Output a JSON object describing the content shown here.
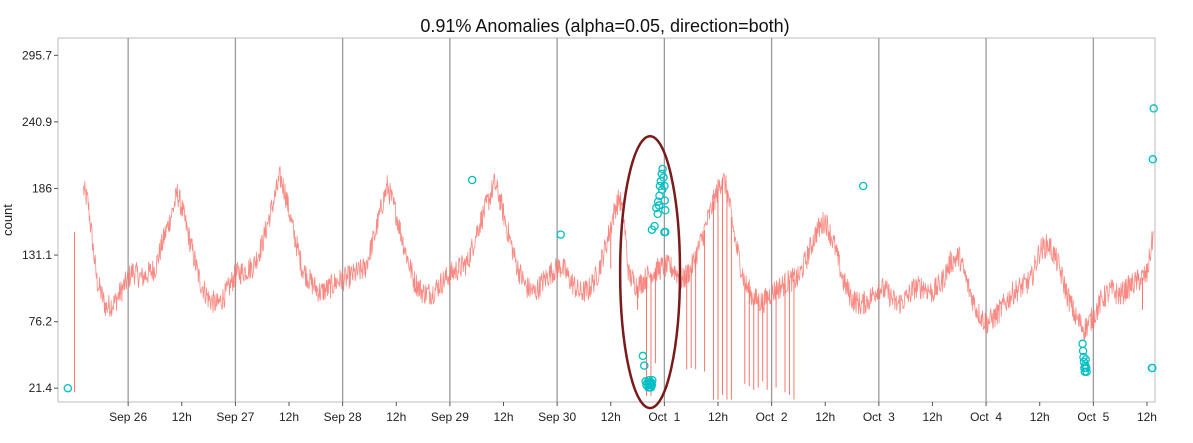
{
  "chart_data": {
    "type": "line",
    "title": "0.91% Anomalies (alpha=0.05, direction=both)",
    "xlabel": "",
    "ylabel": "count",
    "y_ticks": [
      21.4,
      76.2,
      131.1,
      186,
      240.9,
      295.7
    ],
    "y_tick_labels": [
      "21.4",
      "76.2",
      "131.1",
      "186",
      "240.9",
      "295.7"
    ],
    "ylim": [
      10,
      310
    ],
    "x_unit": "hours since Sep 25 00:00",
    "xlim": [
      8.3,
      253.8
    ],
    "x_ticks": [
      {
        "label": "Sep 26",
        "x": 24,
        "major": true
      },
      {
        "label": "12h",
        "x": 36,
        "major": false
      },
      {
        "label": "Sep 27",
        "x": 48,
        "major": true
      },
      {
        "label": "12h",
        "x": 60,
        "major": false
      },
      {
        "label": "Sep 28",
        "x": 72,
        "major": true
      },
      {
        "label": "12h",
        "x": 84,
        "major": false
      },
      {
        "label": "Sep 29",
        "x": 96,
        "major": true
      },
      {
        "label": "12h",
        "x": 108,
        "major": false
      },
      {
        "label": "Sep 30",
        "x": 120,
        "major": true
      },
      {
        "label": "12h",
        "x": 132,
        "major": false
      },
      {
        "label": "Oct  1",
        "x": 144,
        "major": true
      },
      {
        "label": "12h",
        "x": 156,
        "major": false
      },
      {
        "label": "Oct  2",
        "x": 168,
        "major": true
      },
      {
        "label": "12h",
        "x": 180,
        "major": false
      },
      {
        "label": "Oct  3",
        "x": 192,
        "major": true
      },
      {
        "label": "12h",
        "x": 204,
        "major": false
      },
      {
        "label": "Oct  4",
        "x": 216,
        "major": true
      },
      {
        "label": "12h",
        "x": 228,
        "major": false
      },
      {
        "label": "Oct  5",
        "x": 240,
        "major": true
      },
      {
        "label": "12h",
        "x": 252,
        "major": false
      }
    ],
    "series": [
      {
        "name": "count",
        "color": "#F8766D",
        "points": [
          [
            14,
            185
          ],
          [
            15,
            175
          ],
          [
            17,
            110
          ],
          [
            19,
            88
          ],
          [
            21,
            92
          ],
          [
            23,
            105
          ],
          [
            25,
            118
          ],
          [
            27,
            112
          ],
          [
            30,
            120
          ],
          [
            32,
            145
          ],
          [
            34,
            168
          ],
          [
            35,
            182
          ],
          [
            36,
            170
          ],
          [
            38,
            140
          ],
          [
            40,
            110
          ],
          [
            42,
            95
          ],
          [
            44,
            90
          ],
          [
            46,
            100
          ],
          [
            48,
            115
          ],
          [
            50,
            118
          ],
          [
            52,
            122
          ],
          [
            54,
            140
          ],
          [
            56,
            168
          ],
          [
            58,
            195
          ],
          [
            59,
            185
          ],
          [
            61,
            150
          ],
          [
            63,
            120
          ],
          [
            65,
            108
          ],
          [
            67,
            100
          ],
          [
            69,
            104
          ],
          [
            71,
            110
          ],
          [
            73,
            112
          ],
          [
            75,
            116
          ],
          [
            77,
            120
          ],
          [
            79,
            145
          ],
          [
            81,
            175
          ],
          [
            82,
            188
          ],
          [
            84,
            165
          ],
          [
            86,
            135
          ],
          [
            88,
            110
          ],
          [
            90,
            100
          ],
          [
            92,
            100
          ],
          [
            94,
            108
          ],
          [
            96,
            115
          ],
          [
            98,
            120
          ],
          [
            100,
            125
          ],
          [
            102,
            150
          ],
          [
            104,
            170
          ],
          [
            106,
            190
          ],
          [
            107,
            180
          ],
          [
            109,
            150
          ],
          [
            111,
            122
          ],
          [
            113,
            105
          ],
          [
            115,
            100
          ],
          [
            117,
            110
          ],
          [
            119,
            118
          ],
          [
            121,
            122
          ],
          [
            123,
            110
          ],
          [
            125,
            100
          ],
          [
            127,
            102
          ],
          [
            129,
            115
          ],
          [
            131,
            140
          ],
          [
            133,
            170
          ],
          [
            134,
            178
          ],
          [
            135,
            160
          ],
          [
            136,
            115
          ],
          [
            138,
            105
          ],
          [
            140,
            113
          ],
          [
            142,
            118
          ],
          [
            144,
            122
          ],
          [
            146,
            120
          ],
          [
            148,
            110
          ],
          [
            150,
            120
          ],
          [
            152,
            140
          ],
          [
            155,
            175
          ],
          [
            157,
            195
          ],
          [
            158,
            185
          ],
          [
            160,
            140
          ],
          [
            162,
            108
          ],
          [
            164,
            95
          ],
          [
            166,
            92
          ],
          [
            168,
            100
          ],
          [
            170,
            105
          ],
          [
            172,
            110
          ],
          [
            174,
            112
          ],
          [
            176,
            130
          ],
          [
            178,
            150
          ],
          [
            180,
            160
          ],
          [
            182,
            140
          ],
          [
            184,
            110
          ],
          [
            186,
            95
          ],
          [
            188,
            90
          ],
          [
            190,
            95
          ],
          [
            192,
            105
          ],
          [
            194,
            100
          ],
          [
            196,
            90
          ],
          [
            198,
            95
          ],
          [
            200,
            104
          ],
          [
            202,
            105
          ],
          [
            204,
            100
          ],
          [
            206,
            108
          ],
          [
            208,
            125
          ],
          [
            210,
            130
          ],
          [
            212,
            105
          ],
          [
            214,
            85
          ],
          [
            216,
            75
          ],
          [
            218,
            80
          ],
          [
            220,
            90
          ],
          [
            222,
            100
          ],
          [
            224,
            105
          ],
          [
            226,
            110
          ],
          [
            228,
            135
          ],
          [
            230,
            140
          ],
          [
            232,
            125
          ],
          [
            234,
            100
          ],
          [
            236,
            80
          ],
          [
            238,
            70
          ],
          [
            240,
            80
          ],
          [
            242,
            95
          ],
          [
            244,
            102
          ],
          [
            246,
            98
          ],
          [
            248,
            105
          ],
          [
            250,
            110
          ],
          [
            252,
            115
          ],
          [
            253.5,
            150
          ]
        ]
      }
    ],
    "spikes": [
      [
        12,
        18
      ],
      [
        132,
        120
      ],
      [
        250,
        115
      ],
      [
        251,
        86
      ],
      [
        138,
        86
      ],
      [
        140,
        15
      ],
      [
        141,
        15
      ],
      [
        142,
        42
      ],
      [
        149,
        37
      ],
      [
        150,
        38
      ],
      [
        151,
        37
      ],
      [
        153,
        35
      ],
      [
        155,
        12
      ],
      [
        156,
        12
      ],
      [
        157,
        16
      ],
      [
        158,
        12
      ],
      [
        159,
        12
      ],
      [
        162,
        25
      ],
      [
        163,
        23
      ],
      [
        164,
        20
      ],
      [
        165,
        22
      ],
      [
        166,
        27
      ],
      [
        167,
        20
      ],
      [
        169,
        22
      ],
      [
        171,
        18
      ],
      [
        172,
        16
      ],
      [
        173,
        12
      ]
    ],
    "anomalies": {
      "color": "#00BFC4",
      "points": [
        [
          10.5,
          21.4
        ],
        [
          101,
          193
        ],
        [
          120.8,
          148
        ],
        [
          139.2,
          48
        ],
        [
          139.5,
          40
        ],
        [
          139.8,
          27
        ],
        [
          140,
          24
        ],
        [
          140.2,
          26
        ],
        [
          140.4,
          22
        ],
        [
          140.6,
          28
        ],
        [
          140.8,
          25
        ],
        [
          141,
          22
        ],
        [
          141.1,
          26
        ],
        [
          141.2,
          24
        ],
        [
          141.3,
          28
        ],
        [
          140.5,
          24
        ],
        [
          140.7,
          22
        ],
        [
          140.9,
          26
        ],
        [
          141.2,
          152
        ],
        [
          141.8,
          155
        ],
        [
          142.2,
          170
        ],
        [
          142.6,
          175
        ],
        [
          142.9,
          180
        ],
        [
          143,
          188
        ],
        [
          143.2,
          192
        ],
        [
          143.4,
          198
        ],
        [
          143.6,
          202
        ],
        [
          143.8,
          195
        ],
        [
          144,
          188
        ],
        [
          144.1,
          176
        ],
        [
          144.2,
          168
        ],
        [
          142.8,
          172
        ],
        [
          143.5,
          185
        ],
        [
          142.5,
          165
        ],
        [
          144,
          150
        ],
        [
          144.2,
          150
        ],
        [
          188.5,
          188
        ],
        [
          237.7,
          52
        ],
        [
          237.8,
          47
        ],
        [
          237.9,
          43
        ],
        [
          238,
          38
        ],
        [
          238.1,
          35
        ],
        [
          238.2,
          40
        ],
        [
          238.3,
          45
        ],
        [
          238.4,
          38
        ],
        [
          238.5,
          35
        ],
        [
          237.6,
          58
        ],
        [
          253.1,
          38
        ],
        [
          253.2,
          38
        ],
        [
          253.3,
          210
        ],
        [
          253.5,
          252
        ]
      ]
    },
    "highlight": {
      "shape": "ellipse",
      "color": "#7B1A1A",
      "cx": 140.8,
      "cy": 117,
      "rx": 6.7,
      "ry": 112
    }
  }
}
